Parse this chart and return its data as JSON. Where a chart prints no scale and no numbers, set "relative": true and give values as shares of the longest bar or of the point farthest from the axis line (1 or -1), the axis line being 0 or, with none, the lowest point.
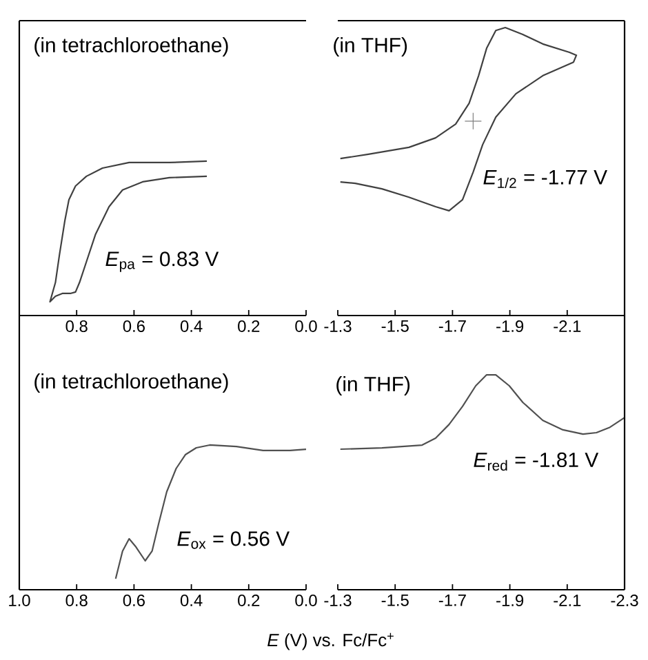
{
  "chart_data": [
    {
      "type": "line",
      "relative": true,
      "xlim": [
        1.0,
        0.0
      ],
      "xticks": [
        {
          "value": 1.0,
          "label": null
        },
        0.8,
        0.6,
        0.4,
        0.2,
        {
          "value": 0.0,
          "label": "0.0"
        }
      ],
      "annotations": [
        "(in tetrachloroethane)",
        "*E*$_{pa}$ = 0.83 V"
      ],
      "series": [
        {
          "color": "#404040",
          "x": [
            0.346,
            0.477,
            0.617,
            0.71,
            0.766,
            0.804,
            0.827,
            0.841,
            0.86,
            0.874,
            0.893,
            0.874,
            0.85,
            0.822,
            0.804,
            0.79,
            0.766,
            0.734,
            0.687,
            0.64,
            0.57,
            0.477,
            0.346
          ],
          "values": [
            1.0,
            0.991,
            0.991,
            0.955,
            0.902,
            0.839,
            0.75,
            0.616,
            0.393,
            0.214,
            0.089,
            0.125,
            0.143,
            0.143,
            0.152,
            0.214,
            0.348,
            0.527,
            0.705,
            0.813,
            0.866,
            0.893,
            0.902
          ]
        }
      ]
    },
    {
      "type": "line",
      "relative": true,
      "xlim": [
        -1.3,
        -2.3
      ],
      "xticks": [
        -1.3,
        -1.5,
        -1.7,
        -1.9,
        -2.1,
        {
          "value": -2.3,
          "label": null
        }
      ],
      "annotations": [
        "(in THF)",
        "*E*$_{1/2}$ = -1.77 V"
      ],
      "series": [
        {
          "color": "#404040",
          "x": [
            -1.309,
            -1.407,
            -1.548,
            -1.641,
            -1.711,
            -1.758,
            -1.791,
            -1.819,
            -1.851,
            -1.884,
            -1.945,
            -2.015,
            -2.108,
            -2.132,
            -2.122,
            -2.015,
            -1.921,
            -1.851,
            -1.805,
            -1.772,
            -1.735,
            -1.688,
            -1.641,
            -1.548,
            -1.454,
            -1.361,
            -1.309
          ],
          "values": [
            0.545,
            0.56,
            0.584,
            0.617,
            0.665,
            0.737,
            0.833,
            0.928,
            0.99,
            1.0,
            0.976,
            0.943,
            0.914,
            0.904,
            0.88,
            0.833,
            0.77,
            0.689,
            0.593,
            0.498,
            0.402,
            0.364,
            0.378,
            0.411,
            0.44,
            0.459,
            0.464
          ]
        },
        {
          "type": "scatter",
          "marker": "cross",
          "color": "#808080",
          "x": [
            -1.772
          ],
          "values": [
            0.675
          ]
        }
      ]
    },
    {
      "type": "line",
      "relative": true,
      "xlim": [
        1.0,
        0.0
      ],
      "xticks": [
        {
          "value": 1.0,
          "label": "1.0"
        },
        0.8,
        0.6,
        0.4,
        0.2,
        {
          "value": 0.0,
          "label": "0.0"
        }
      ],
      "xlabel": "*E* (V) vs. Fc/Fc$^{+}$",
      "annotations": [
        "(in tetrachloroethane)",
        "*E*$_{ox}$ = 0.56 V"
      ],
      "series": [
        {
          "color": "#505050",
          "x": [
            0.664,
            0.64,
            0.617,
            0.593,
            0.561,
            0.537,
            0.514,
            0.486,
            0.453,
            0.421,
            0.383,
            0.336,
            0.243,
            0.15,
            0.056,
            0.0
          ],
          "values": [
            0.076,
            0.267,
            0.352,
            0.295,
            0.2,
            0.267,
            0.457,
            0.676,
            0.838,
            0.933,
            0.981,
            1.0,
            0.99,
            0.962,
            0.962,
            0.971
          ]
        }
      ]
    },
    {
      "type": "line",
      "relative": true,
      "xlim": [
        -1.3,
        -2.3
      ],
      "xticks": [
        -1.3,
        -1.5,
        -1.7,
        -1.9,
        -2.1,
        -2.3
      ],
      "annotations": [
        "(in THF)",
        "*E*$_{red}$ = -1.81 V"
      ],
      "series": [
        {
          "color": "#505050",
          "x": [
            -1.309,
            -1.454,
            -1.594,
            -1.641,
            -1.688,
            -1.735,
            -1.781,
            -1.819,
            -1.851,
            -1.898,
            -1.945,
            -2.015,
            -2.085,
            -2.155,
            -2.202,
            -2.249,
            -2.3
          ],
          "values": [
            0.654,
            0.66,
            0.673,
            0.705,
            0.769,
            0.853,
            0.949,
            1.0,
            1.0,
            0.949,
            0.872,
            0.788,
            0.744,
            0.724,
            0.731,
            0.756,
            0.801
          ]
        }
      ]
    }
  ]
}
